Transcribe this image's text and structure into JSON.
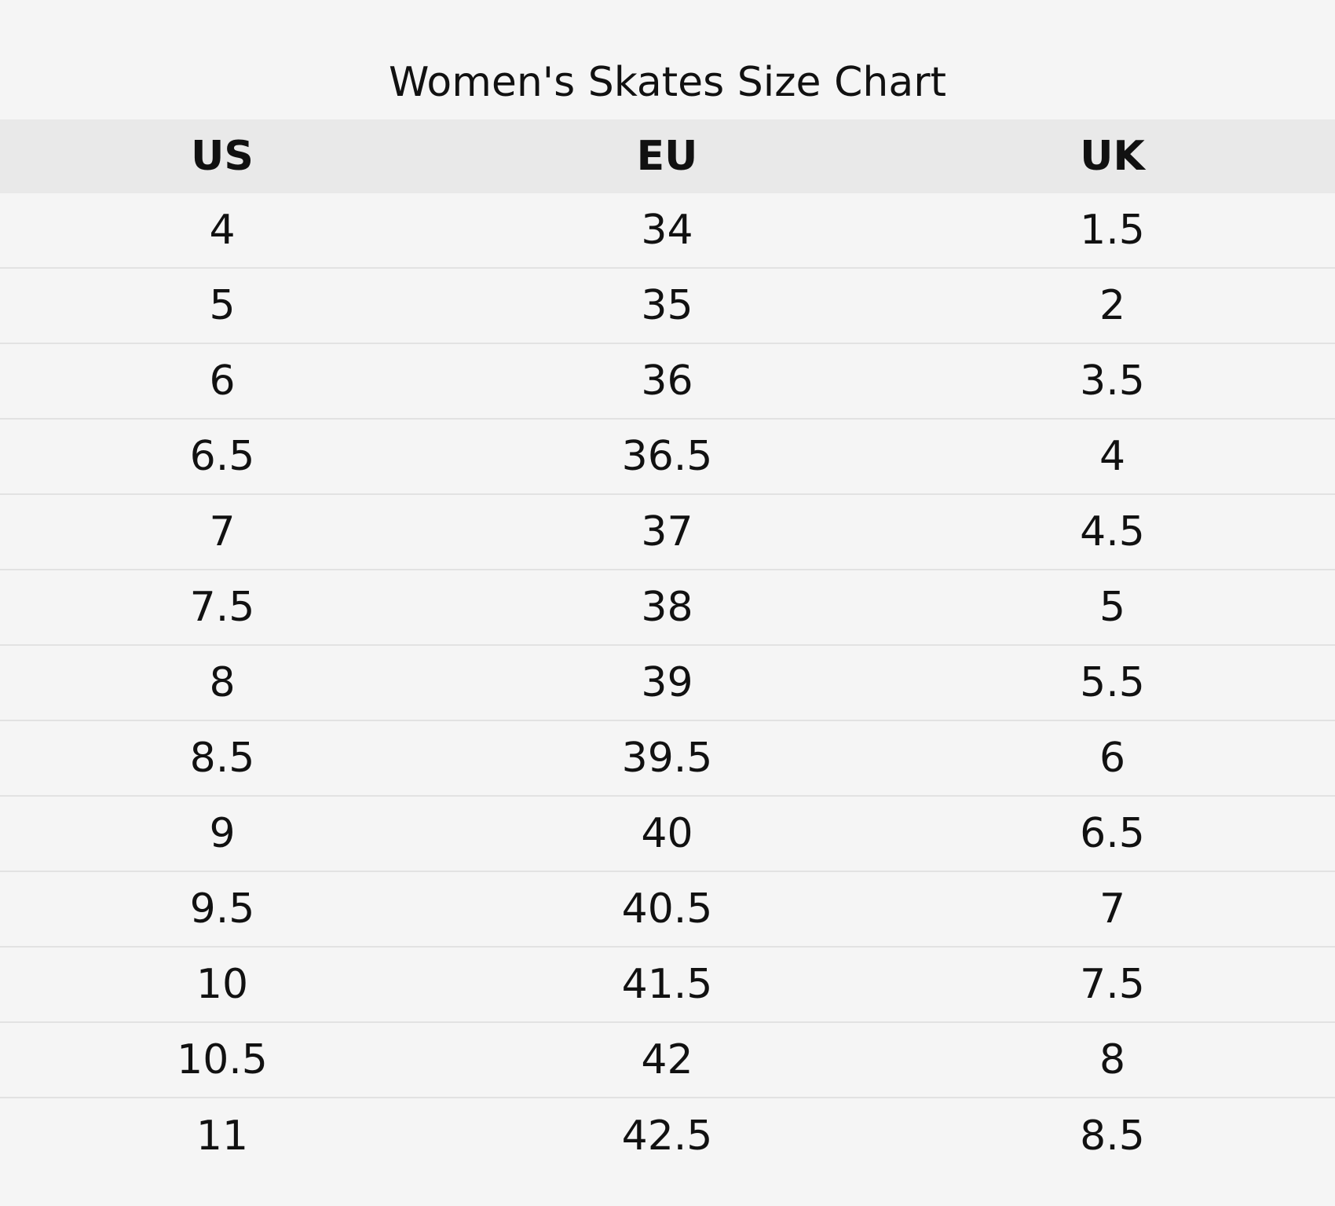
{
  "title": "Women's Skates Size Chart",
  "table": {
    "header": [
      "US",
      "EU",
      "UK"
    ],
    "rows": [
      [
        4,
        34,
        1.5
      ],
      [
        5,
        35,
        2
      ],
      [
        6,
        36,
        3.5
      ],
      [
        6.5,
        36.5,
        4
      ],
      [
        7,
        37,
        4.5
      ],
      [
        7.5,
        38,
        5
      ],
      [
        8,
        39,
        5.5
      ],
      [
        8.5,
        39.5,
        6
      ],
      [
        9,
        40,
        6.5
      ],
      [
        9.5,
        40.5,
        7
      ],
      [
        10,
        41.5,
        7.5
      ],
      [
        10.5,
        42,
        8
      ],
      [
        11,
        42.5,
        8.5
      ]
    ]
  }
}
